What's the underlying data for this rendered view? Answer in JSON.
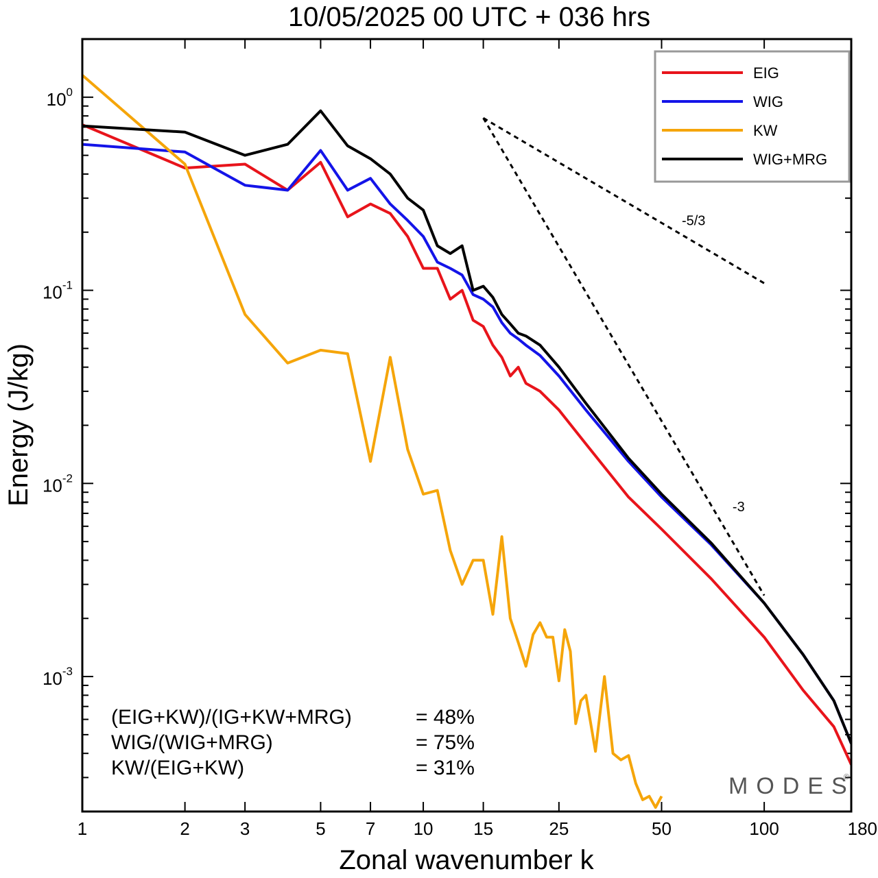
{
  "chart_data": {
    "type": "line",
    "title": "10/05/2025  00 UTC  + 036 hrs",
    "xlabel": "Zonal wavenumber k",
    "ylabel": "Energy (J/kg)",
    "xscale": "log",
    "yscale": "log",
    "xlim": [
      1,
      180
    ],
    "ylim": [
      0.0002,
      2.0
    ],
    "xticks": [
      1,
      2,
      3,
      5,
      7,
      10,
      15,
      25,
      50,
      100,
      180
    ],
    "xtick_labels": [
      "1",
      "2",
      "3",
      "5",
      "7",
      "10",
      "15",
      "25",
      "50",
      "100",
      "180"
    ],
    "yticks": [
      1,
      0.1,
      0.01,
      0.001
    ],
    "ytick_labels": [
      {
        "base": "10",
        "exp": "0"
      },
      {
        "base": "10",
        "exp": "-1"
      },
      {
        "base": "10",
        "exp": "-2"
      },
      {
        "base": "10",
        "exp": "-3"
      }
    ],
    "legend_position": "top-right",
    "series": [
      {
        "name": "EIG",
        "color": "#e8141b",
        "x": [
          1,
          2,
          3,
          4,
          5,
          6,
          7,
          8,
          9,
          10,
          11,
          12,
          13,
          14,
          15,
          16,
          17,
          18,
          19,
          20,
          22,
          25,
          30,
          40,
          50,
          70,
          100,
          130,
          160,
          180
        ],
        "y": [
          0.72,
          0.43,
          0.45,
          0.33,
          0.46,
          0.24,
          0.28,
          0.25,
          0.19,
          0.13,
          0.13,
          0.09,
          0.1,
          0.07,
          0.065,
          0.052,
          0.045,
          0.036,
          0.04,
          0.033,
          0.03,
          0.024,
          0.016,
          0.0085,
          0.0058,
          0.0032,
          0.0016,
          0.00085,
          0.00055,
          0.00035
        ]
      },
      {
        "name": "WIG",
        "color": "#1414e8",
        "x": [
          1,
          2,
          3,
          4,
          5,
          6,
          7,
          8,
          9,
          10,
          11,
          12,
          13,
          14,
          15,
          16,
          17,
          18,
          19,
          20,
          22,
          25,
          30,
          40,
          50,
          70,
          100,
          130,
          160,
          180
        ],
        "y": [
          0.57,
          0.52,
          0.35,
          0.33,
          0.53,
          0.33,
          0.38,
          0.28,
          0.23,
          0.19,
          0.14,
          0.13,
          0.12,
          0.095,
          0.09,
          0.082,
          0.068,
          0.06,
          0.056,
          0.052,
          0.046,
          0.036,
          0.024,
          0.013,
          0.0085,
          0.0048,
          0.0024,
          0.0013,
          0.00075,
          0.00045
        ]
      },
      {
        "name": "KW",
        "color": "#f5a50a",
        "x": [
          1,
          2,
          3,
          4,
          5,
          6,
          7,
          8,
          9,
          10,
          11,
          12,
          13,
          14,
          15,
          16,
          17,
          18,
          19,
          20,
          21,
          22,
          23,
          24,
          25,
          26,
          27,
          28,
          29,
          30,
          32,
          34,
          36,
          38,
          40,
          42,
          44,
          46,
          48,
          50
        ],
        "y": [
          1.3,
          0.45,
          0.075,
          0.042,
          0.049,
          0.047,
          0.013,
          0.045,
          0.015,
          0.0088,
          0.0092,
          0.0045,
          0.003,
          0.004,
          0.004,
          0.0021,
          0.0053,
          0.002,
          0.0015,
          0.00113,
          0.00165,
          0.0019,
          0.0016,
          0.0016,
          0.00095,
          0.00175,
          0.00135,
          0.00057,
          0.00075,
          0.0008,
          0.00041,
          0.001,
          0.0004,
          0.00037,
          0.00039,
          0.00028,
          0.00023,
          0.00024,
          0.00021,
          0.00024
        ]
      },
      {
        "name": "WIG+MRG",
        "color": "#000000",
        "x": [
          1,
          2,
          3,
          4,
          5,
          6,
          7,
          8,
          9,
          10,
          11,
          12,
          13,
          14,
          15,
          16,
          17,
          18,
          19,
          20,
          22,
          25,
          30,
          40,
          50,
          70,
          100,
          130,
          160,
          180
        ],
        "y": [
          0.71,
          0.66,
          0.5,
          0.57,
          0.85,
          0.56,
          0.48,
          0.4,
          0.3,
          0.26,
          0.17,
          0.155,
          0.17,
          0.1,
          0.105,
          0.092,
          0.075,
          0.067,
          0.06,
          0.058,
          0.052,
          0.04,
          0.026,
          0.0135,
          0.0088,
          0.0049,
          0.0024,
          0.0013,
          0.00075,
          0.00045
        ]
      }
    ],
    "reference_lines": [
      {
        "label": "-5/3",
        "x": [
          15,
          100
        ],
        "y": [
          0.78,
          0.1088
        ]
      },
      {
        "label": "-3",
        "x": [
          15,
          100
        ],
        "y": [
          0.78,
          0.00263
        ]
      }
    ],
    "annotations": [
      {
        "label": "(EIG+KW)/(IG+KW+MRG)",
        "value": "= 48%"
      },
      {
        "label": "WIG/(WIG+MRG)",
        "value": "= 75%"
      },
      {
        "label": "KW/(EIG+KW)",
        "value": "= 31%"
      }
    ],
    "watermark": "MODES",
    "watermark_symbol": "©"
  }
}
